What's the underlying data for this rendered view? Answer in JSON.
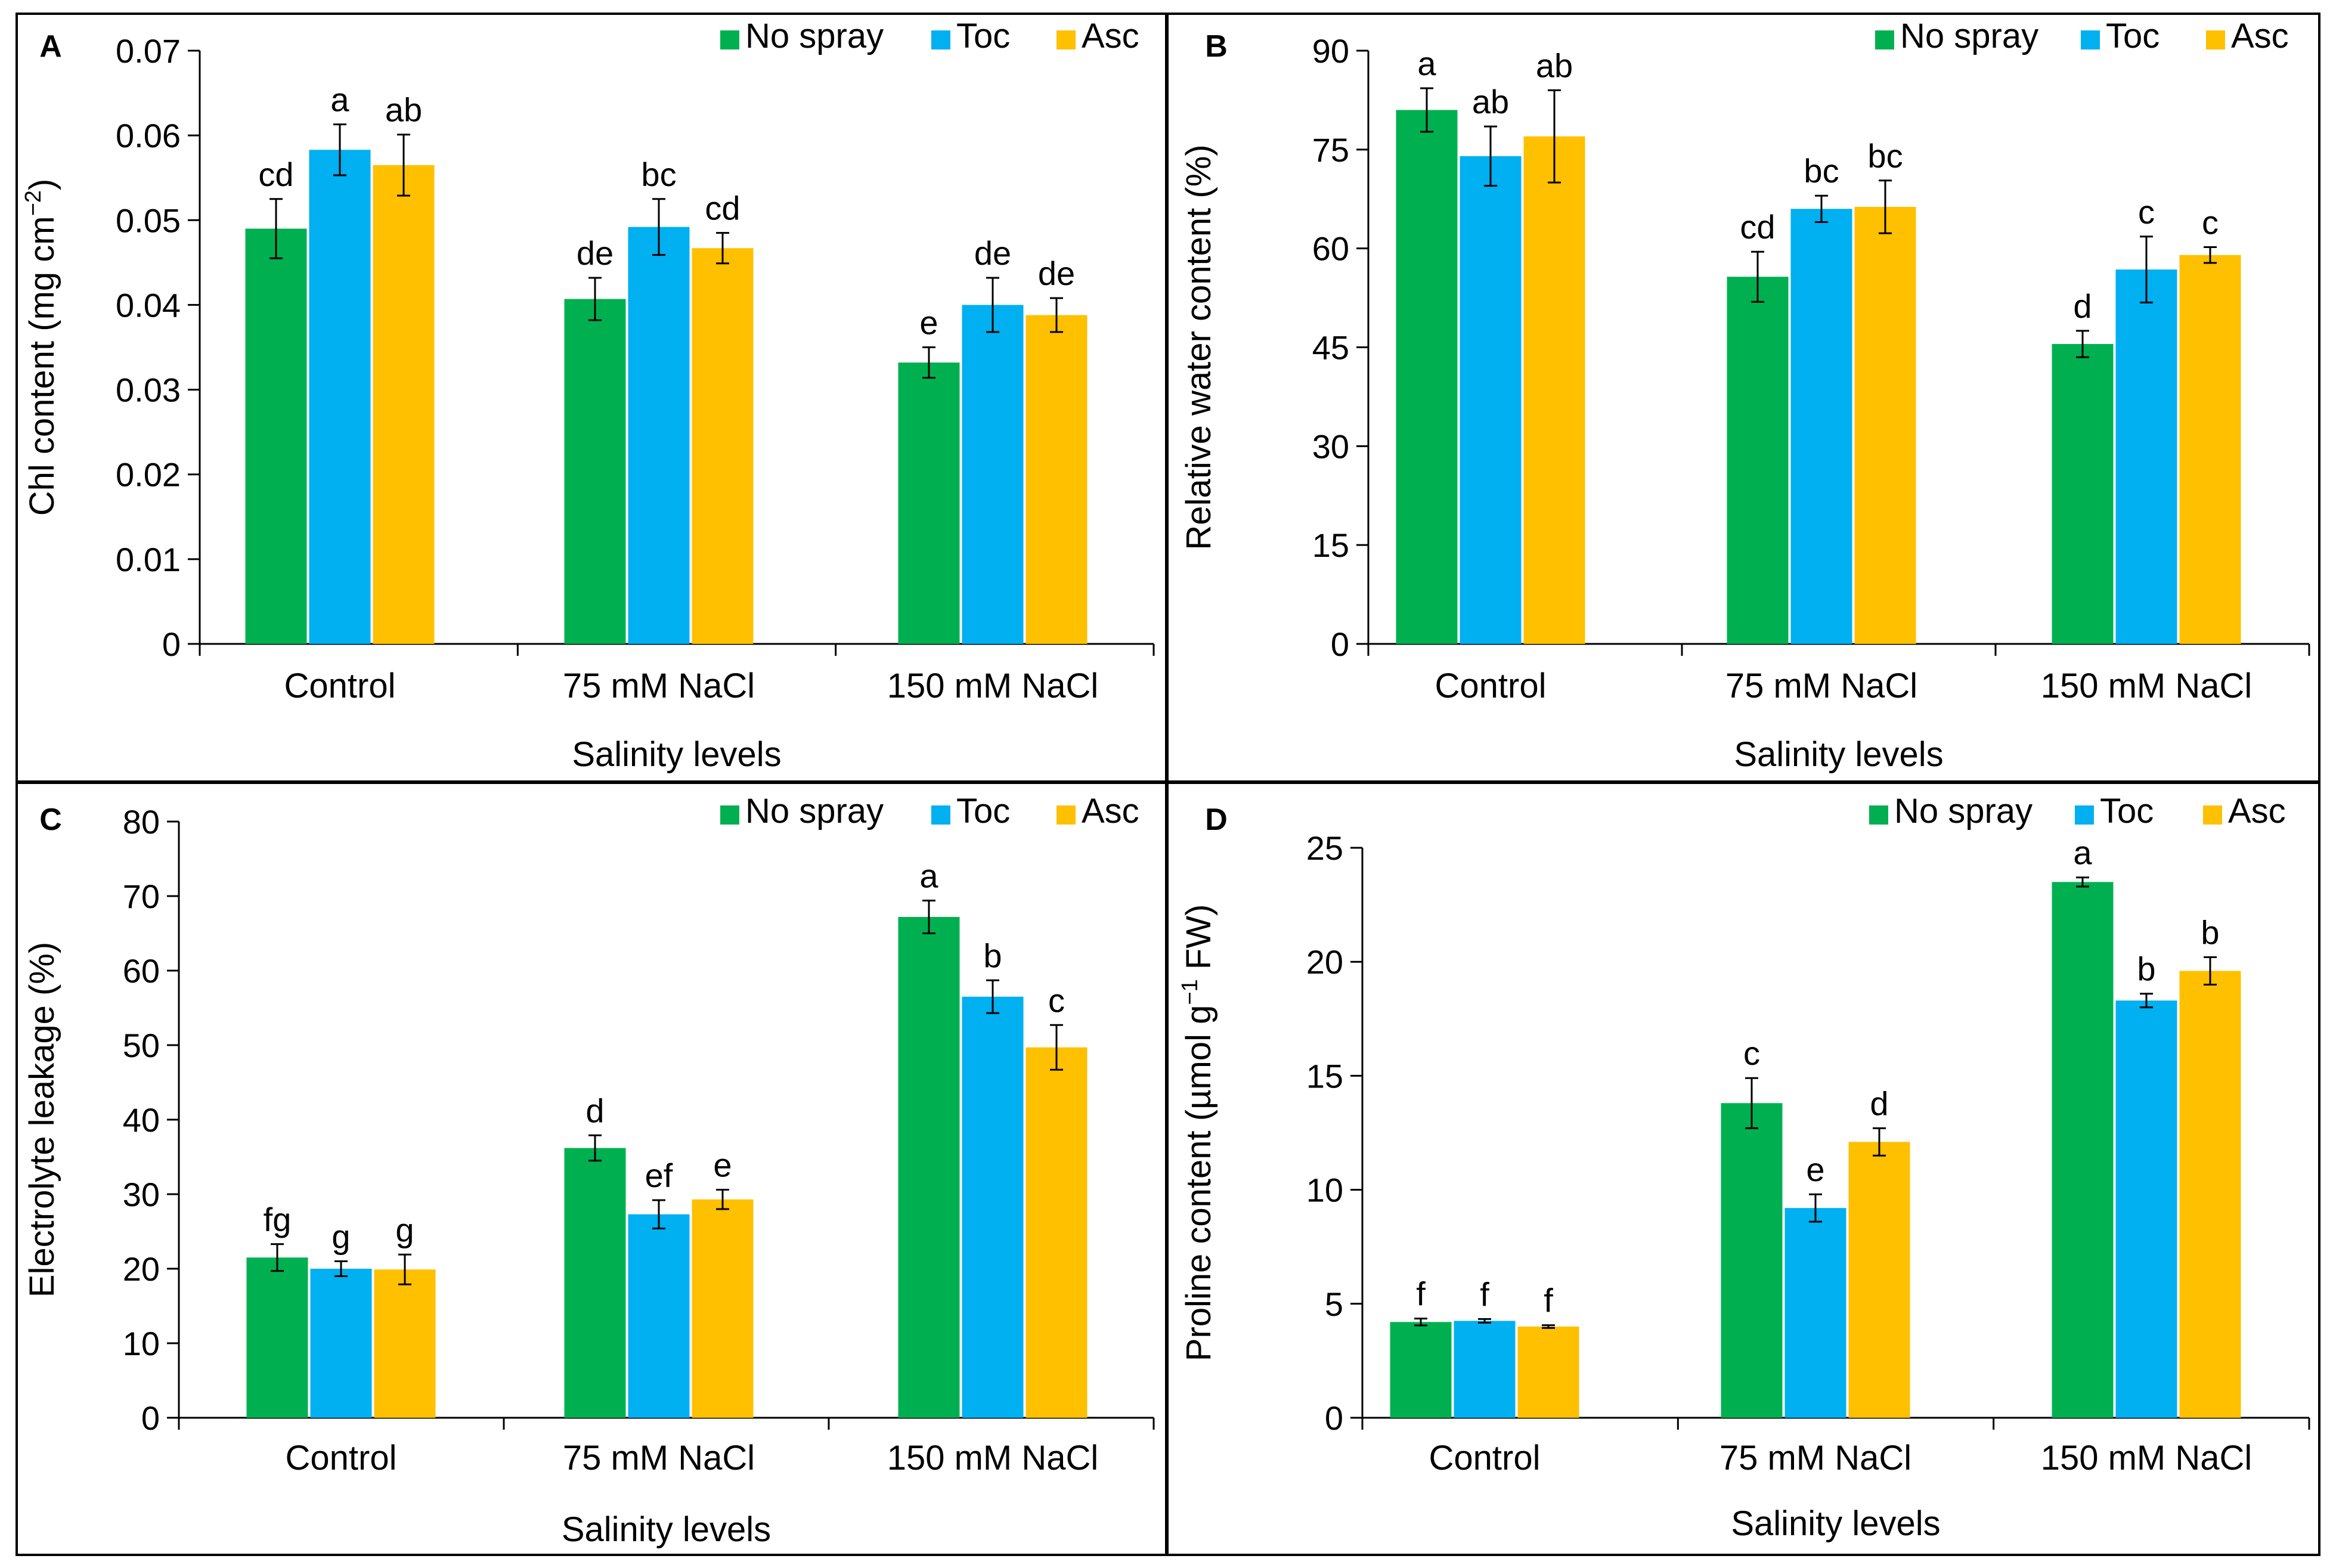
{
  "figure": {
    "legend_entries": [
      "No spray",
      "Toc",
      "Asc"
    ],
    "colors": {
      "no_spray": "#00B050",
      "toc": "#00B0F0",
      "asc": "#FFC000",
      "axis": "#000000",
      "border": "#000000"
    }
  },
  "chart_data": [
    {
      "panel": "A",
      "type": "bar",
      "title": "",
      "xlabel": "Salinity levels",
      "ylabel_main": "Chl content (mg cm",
      "ylabel_sup": "−2",
      "ylabel_tail": ")",
      "categories": [
        "Control",
        "75 mM NaCl",
        "150 mM NaCl"
      ],
      "ylim": [
        0,
        0.07
      ],
      "yticks": [
        "0",
        "0.01",
        "0.02",
        "0.03",
        "0.04",
        "0.05",
        "0.06",
        "0.07"
      ],
      "tick_values": [
        0,
        0.01,
        0.02,
        0.03,
        0.04,
        0.05,
        0.06,
        0.07
      ],
      "legend": "top-right",
      "series": [
        {
          "name": "No spray",
          "values": [
            0.049,
            0.0407,
            0.0332
          ],
          "errors": [
            0.0035,
            0.0025,
            0.0018
          ],
          "letters": [
            "cd",
            "de",
            "e"
          ]
        },
        {
          "name": "Toc",
          "values": [
            0.0583,
            0.0492,
            0.04
          ],
          "errors": [
            0.003,
            0.0033,
            0.0032
          ],
          "letters": [
            "a",
            "bc",
            "de"
          ]
        },
        {
          "name": "Asc",
          "values": [
            0.0565,
            0.0467,
            0.0388
          ],
          "errors": [
            0.0036,
            0.0018,
            0.002
          ],
          "letters": [
            "ab",
            "cd",
            "de"
          ]
        }
      ]
    },
    {
      "panel": "B",
      "type": "bar",
      "title": "",
      "xlabel": "Salinity levels",
      "ylabel_main": "Relative water content (%)",
      "ylabel_sup": "",
      "ylabel_tail": "",
      "categories": [
        "Control",
        "75 mM NaCl",
        "150 mM NaCl"
      ],
      "ylim": [
        0,
        90
      ],
      "yticks": [
        "0",
        "15",
        "30",
        "45",
        "60",
        "75",
        "90"
      ],
      "tick_values": [
        0,
        15,
        30,
        45,
        60,
        75,
        90
      ],
      "legend": "top-right",
      "series": [
        {
          "name": "No spray",
          "values": [
            81.0,
            55.7,
            45.5
          ],
          "errors": [
            3.3,
            3.8,
            2.0
          ],
          "letters": [
            "a",
            "cd",
            "d"
          ]
        },
        {
          "name": "Toc",
          "values": [
            74.0,
            66.0,
            56.8
          ],
          "errors": [
            4.5,
            2.0,
            5.0
          ],
          "letters": [
            "ab",
            "bc",
            "c"
          ]
        },
        {
          "name": "Asc",
          "values": [
            77.0,
            66.3,
            59.0
          ],
          "errors": [
            7.0,
            4.0,
            1.2
          ],
          "letters": [
            "ab",
            "bc",
            "c"
          ]
        }
      ]
    },
    {
      "panel": "C",
      "type": "bar",
      "title": "",
      "xlabel": "Salinity levels",
      "ylabel_main": "Electrolyte leakage (%)",
      "ylabel_sup": "",
      "ylabel_tail": "",
      "categories": [
        "Control",
        "75 mM NaCl",
        "150 mM NaCl"
      ],
      "ylim": [
        0,
        80
      ],
      "yticks": [
        "0",
        "10",
        "20",
        "30",
        "40",
        "50",
        "60",
        "70",
        "80"
      ],
      "tick_values": [
        0,
        10,
        20,
        30,
        40,
        50,
        60,
        70,
        80
      ],
      "legend": "top-right",
      "series": [
        {
          "name": "No spray",
          "values": [
            21.5,
            36.2,
            67.2
          ],
          "errors": [
            1.8,
            1.7,
            2.2
          ],
          "letters": [
            "fg",
            "d",
            "a"
          ]
        },
        {
          "name": "Toc",
          "values": [
            20.0,
            27.3,
            56.5
          ],
          "errors": [
            1.0,
            1.9,
            2.2
          ],
          "letters": [
            "g",
            "ef",
            "b"
          ]
        },
        {
          "name": "Asc",
          "values": [
            19.9,
            29.3,
            49.7
          ],
          "errors": [
            2.0,
            1.3,
            3.0
          ],
          "letters": [
            "g",
            "e",
            "c"
          ]
        }
      ]
    },
    {
      "panel": "D",
      "type": "bar",
      "title": "",
      "xlabel": "Salinity levels",
      "ylabel_main": "Proline content (µmol g",
      "ylabel_sup": "−1",
      "ylabel_tail": " FW)",
      "categories": [
        "Control",
        "75 mM NaCl",
        "150 mM NaCl"
      ],
      "ylim": [
        0,
        25
      ],
      "yticks": [
        "0",
        "5",
        "10",
        "15",
        "20",
        "25"
      ],
      "tick_values": [
        0,
        5,
        10,
        15,
        20,
        25
      ],
      "legend": "top-right",
      "series": [
        {
          "name": "No spray",
          "values": [
            4.2,
            13.8,
            23.5
          ],
          "errors": [
            0.15,
            1.1,
            0.2
          ],
          "letters": [
            "f",
            "c",
            "a"
          ]
        },
        {
          "name": "Toc",
          "values": [
            4.25,
            9.2,
            18.3
          ],
          "errors": [
            0.08,
            0.6,
            0.3
          ],
          "letters": [
            "f",
            "e",
            "b"
          ]
        },
        {
          "name": "Asc",
          "values": [
            4.0,
            12.1,
            19.6
          ],
          "errors": [
            0.06,
            0.6,
            0.6
          ],
          "letters": [
            "f",
            "d",
            "b"
          ]
        }
      ]
    }
  ]
}
